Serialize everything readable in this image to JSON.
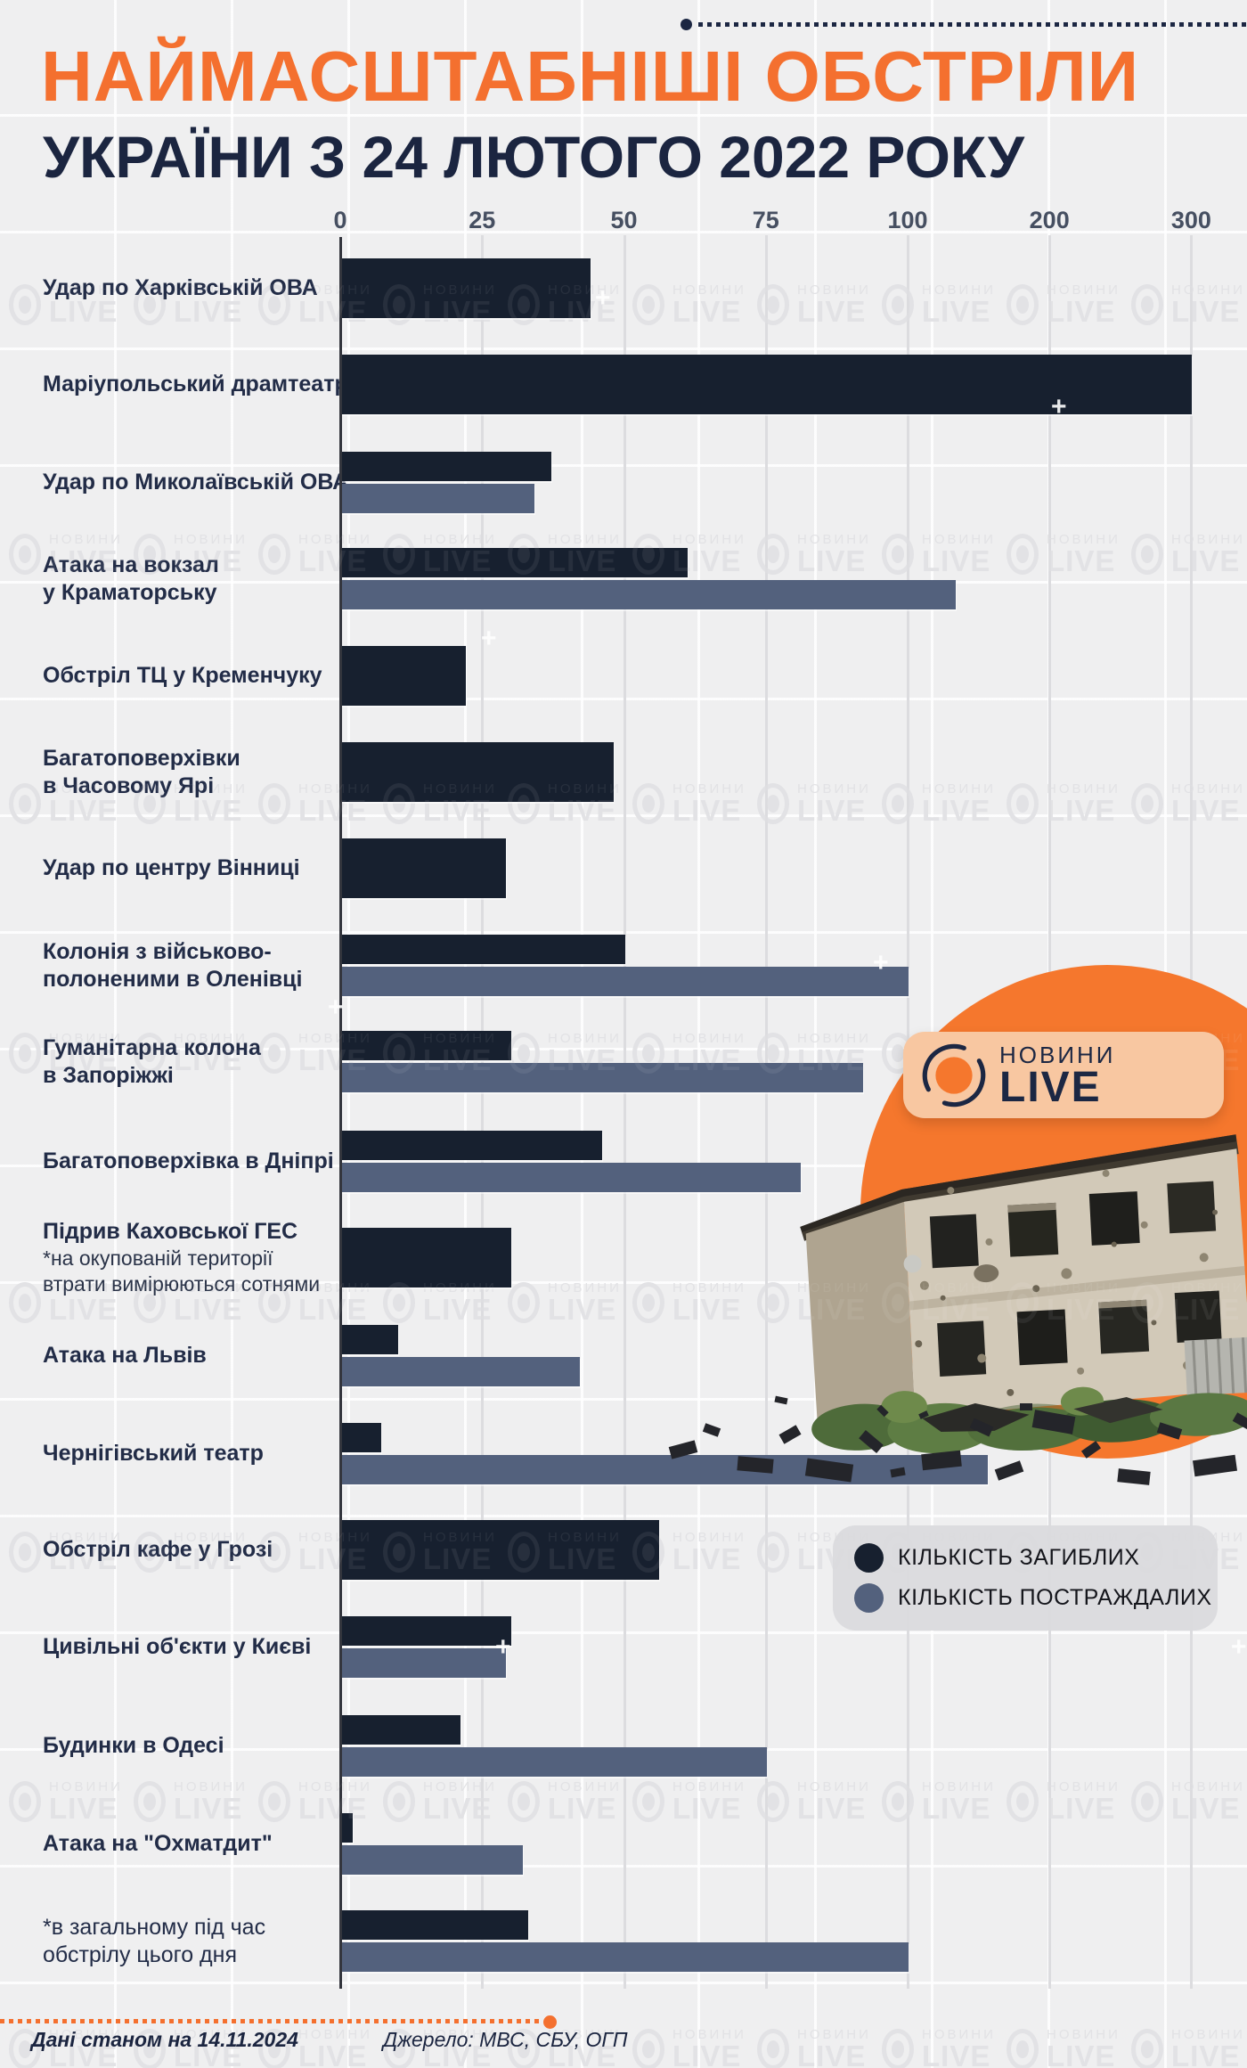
{
  "header": {
    "title_line1": "НАЙМАСШТАБНІШІ ОБСТРІЛИ",
    "title_line2": "УКРАЇНИ З 24 ЛЮТОГО 2022 РОКУ"
  },
  "watermark": {
    "top": "НОВИНИ",
    "bottom": "LIVE"
  },
  "badge": {
    "top": "НОВИНИ",
    "bottom": "LIVE"
  },
  "legend": {
    "items": [
      {
        "label": "КІЛЬКІСТЬ ЗАГИБЛИХ",
        "color": "#17202F"
      },
      {
        "label": "КІЛЬКІСТЬ ПОСТРАЖДАЛИХ",
        "color": "#53617D"
      }
    ]
  },
  "footer": {
    "data_note": "Дані станом на 14.11.2024",
    "source": "Джерело: МВС, СБУ, ОГП"
  },
  "colors": {
    "accent_orange": "#F4702F",
    "navy_title": "#1B2540",
    "bar_killed": "#17202F",
    "bar_injured": "#53617D",
    "background": "#EFEFF0",
    "legend_panel": "#DADADD",
    "badge_peach": "#F8C7A1",
    "photo_circle": "#F5772D"
  },
  "chart_data": {
    "type": "bar",
    "orientation": "horizontal",
    "title": "НАЙМАСШТАБНІШІ ОБСТРІЛИ УКРАЇНИ З 24 ЛЮТОГО 2022 РОКУ",
    "xlabel": "",
    "ylabel": "",
    "axis_ticks": [
      0,
      25,
      50,
      75,
      100,
      200,
      300
    ],
    "axis_note": "x-axis linear from 0 to 100 (step 25), compressed from 100 to 300 (step 100)",
    "grid": true,
    "legend_position": "right-middle",
    "series_names": [
      "КІЛЬКІСТЬ ЗАГИБЛИХ",
      "КІЛЬКІСТЬ ПОСТРАЖДАЛИХ"
    ],
    "rows": [
      {
        "lines": [
          "Удар по Харківській ОВА"
        ],
        "killed": 44,
        "injured": null
      },
      {
        "lines": [
          "Маріупольський драмтеатр"
        ],
        "killed": 300,
        "injured": null
      },
      {
        "lines": [
          "Удар по Миколаївській ОВА"
        ],
        "killed": 37,
        "injured": 34
      },
      {
        "lines": [
          "Атака на вокзал",
          "у Краматорську"
        ],
        "killed": 61,
        "injured": 133
      },
      {
        "lines": [
          "Обстріл ТЦ у Кременчуку"
        ],
        "killed": 22,
        "injured": null
      },
      {
        "lines": [
          "Багатоповерхівки",
          "в Часовому Ярі"
        ],
        "killed": 48,
        "injured": null
      },
      {
        "lines": [
          "Удар по центру Вінниці"
        ],
        "killed": 29,
        "injured": null
      },
      {
        "lines": [
          "Колонія з військово-",
          "полоненими в Оленівці"
        ],
        "killed": 50,
        "injured": 100
      },
      {
        "lines": [
          "Гуманітарна колона",
          "в Запоріжжі"
        ],
        "killed": 30,
        "injured": 92
      },
      {
        "lines": [
          "Багатоповерхівка в Дніпрі"
        ],
        "killed": 46,
        "injured": 81
      },
      {
        "lines": [
          "Підрив Каховської ГЕС"
        ],
        "note_lines": [
          "*на окупованій території",
          "втрати вимірюються сотнями"
        ],
        "killed": 30,
        "injured": null
      },
      {
        "lines": [
          "Атака на Львів"
        ],
        "killed": 10,
        "injured": 42
      },
      {
        "lines": [
          "Чернігівський театр"
        ],
        "killed": 7,
        "injured": 156
      },
      {
        "lines": [
          "Обстріл кафе у Грозі"
        ],
        "killed": 56,
        "injured": null
      },
      {
        "lines": [
          "Цивільні об'єкти у Києві"
        ],
        "killed": 30,
        "injured": 29
      },
      {
        "lines": [
          "Будинки в Одесі"
        ],
        "killed": 21,
        "injured": 75
      },
      {
        "lines": [
          "Атака на \"Охматдит\""
        ],
        "killed": 2,
        "injured": 32
      },
      {
        "lines": [
          "*в загальному під час",
          "обстрілу цього дня"
        ],
        "plain": true,
        "killed": 33,
        "injured": 100
      }
    ]
  }
}
